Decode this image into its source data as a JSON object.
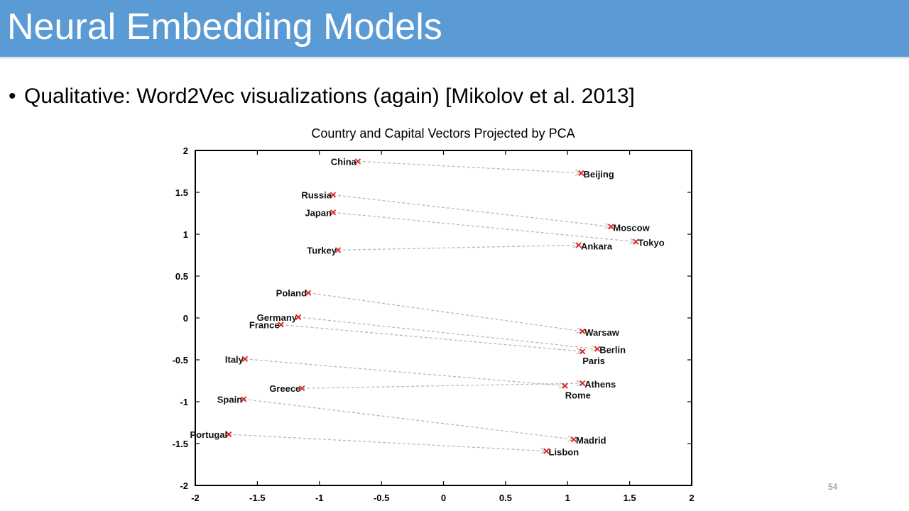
{
  "slide": {
    "title": "Neural Embedding Models",
    "bullet": "Qualitative: Word2Vec visualizations (again) [Mikolov et al. 2013]",
    "page_number": "54"
  },
  "colors": {
    "title_bar": "#5b9bd5",
    "marker": "#e02020",
    "arrow": "#b8b8b8"
  },
  "chart_data": {
    "type": "scatter",
    "title": "Country and Capital Vectors Projected by PCA",
    "xlim": [
      -2,
      2
    ],
    "ylim": [
      -2,
      2
    ],
    "x_ticks": [
      "-2",
      "-1.5",
      "-1",
      "-0.5",
      "0",
      "0.5",
      "1",
      "1.5",
      "2"
    ],
    "y_ticks": [
      "2",
      "1.5",
      "1",
      "0.5",
      "0",
      "-0.5",
      "-1",
      "-1.5",
      "-2"
    ],
    "grid": false,
    "points": [
      {
        "label": "China",
        "x": -0.69,
        "y": 1.87
      },
      {
        "label": "Beijing",
        "x": 1.11,
        "y": 1.73
      },
      {
        "label": "Russia",
        "x": -0.89,
        "y": 1.47
      },
      {
        "label": "Moscow",
        "x": 1.35,
        "y": 1.09
      },
      {
        "label": "Japan",
        "x": -0.89,
        "y": 1.26
      },
      {
        "label": "Tokyo",
        "x": 1.55,
        "y": 0.91
      },
      {
        "label": "Turkey",
        "x": -0.85,
        "y": 0.81
      },
      {
        "label": "Ankara",
        "x": 1.09,
        "y": 0.87
      },
      {
        "label": "Poland",
        "x": -1.09,
        "y": 0.3
      },
      {
        "label": "Warsaw",
        "x": 1.12,
        "y": -0.16
      },
      {
        "label": "Germany",
        "x": -1.17,
        "y": 0.01
      },
      {
        "label": "Berlin",
        "x": 1.24,
        "y": -0.37
      },
      {
        "label": "France",
        "x": -1.31,
        "y": -0.08
      },
      {
        "label": "Paris",
        "x": 1.12,
        "y": -0.4
      },
      {
        "label": "Italy",
        "x": -1.6,
        "y": -0.49
      },
      {
        "label": "Rome",
        "x": 0.98,
        "y": -0.81
      },
      {
        "label": "Greece",
        "x": -1.14,
        "y": -0.84
      },
      {
        "label": "Athens",
        "x": 1.12,
        "y": -0.78
      },
      {
        "label": "Spain",
        "x": -1.61,
        "y": -0.97
      },
      {
        "label": "Madrid",
        "x": 1.05,
        "y": -1.45
      },
      {
        "label": "Portugal",
        "x": -1.73,
        "y": -1.39
      },
      {
        "label": "Lisbon",
        "x": 0.83,
        "y": -1.59
      }
    ],
    "arrows": [
      {
        "from": "China",
        "to": "Beijing"
      },
      {
        "from": "Russia",
        "to": "Moscow"
      },
      {
        "from": "Japan",
        "to": "Tokyo"
      },
      {
        "from": "Turkey",
        "to": "Ankara"
      },
      {
        "from": "Poland",
        "to": "Warsaw"
      },
      {
        "from": "Germany",
        "to": "Berlin"
      },
      {
        "from": "France",
        "to": "Paris"
      },
      {
        "from": "Italy",
        "to": "Rome"
      },
      {
        "from": "Greece",
        "to": "Athens"
      },
      {
        "from": "Spain",
        "to": "Madrid"
      },
      {
        "from": "Portugal",
        "to": "Lisbon"
      }
    ]
  }
}
